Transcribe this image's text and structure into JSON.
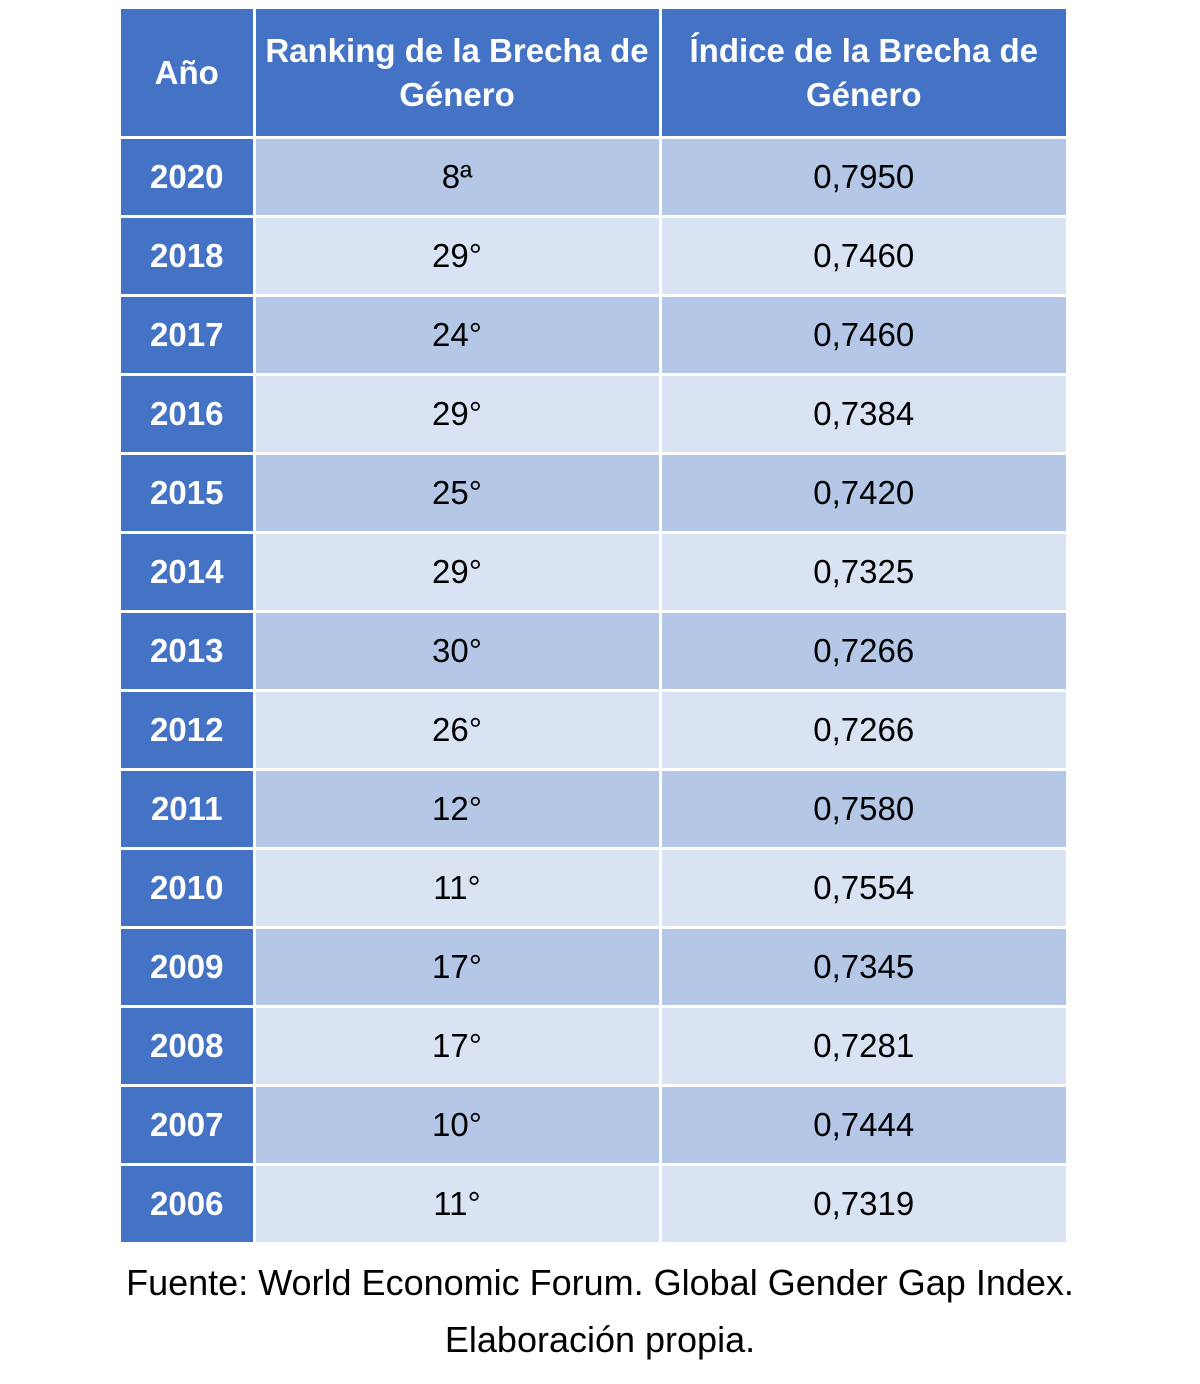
{
  "table": {
    "headers": [
      "Año",
      "Ranking de la Brecha de Género",
      "Índice de la Brecha de Género"
    ],
    "rows": [
      [
        "2020",
        "8ª",
        "0,7950"
      ],
      [
        "2018",
        "29°",
        "0,7460"
      ],
      [
        "2017",
        "24°",
        "0,7460"
      ],
      [
        "2016",
        "29°",
        "0,7384"
      ],
      [
        "2015",
        "25°",
        "0,7420"
      ],
      [
        "2014",
        "29°",
        "0,7325"
      ],
      [
        "2013",
        "30°",
        "0,7266"
      ],
      [
        "2012",
        "26°",
        "0,7266"
      ],
      [
        "2011",
        "12°",
        "0,7580"
      ],
      [
        "2010",
        "11°",
        "0,7554"
      ],
      [
        "2009",
        "17°",
        "0,7345"
      ],
      [
        "2008",
        "17°",
        "0,7281"
      ],
      [
        "2007",
        "10°",
        "0,7444"
      ],
      [
        "2006",
        "11°",
        "0,7319"
      ]
    ]
  },
  "footer": {
    "line1": "Fuente: World Economic Forum. Global Gender Gap Index.",
    "line2": "Elaboración propia."
  },
  "colors": {
    "header_blue": "#4472c4",
    "row_dark": "#b4c7e7",
    "row_light": "#dae3f3"
  }
}
